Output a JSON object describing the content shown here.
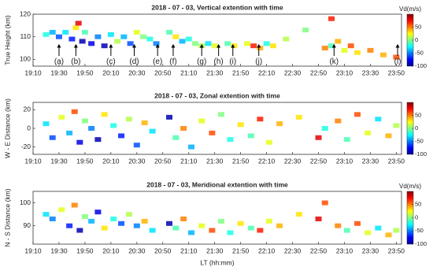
{
  "chart_data": [
    {
      "type": "scatter",
      "title": "2018 - 07 - 03,  Vertical extention with time",
      "ylabel": "True Height (km)",
      "colormap": "jet",
      "clim": [
        -100,
        100
      ],
      "cticks": [
        -100,
        -50,
        0,
        50
      ],
      "colorbar_label": "Vd(m/s)",
      "xlim": [
        "19:10",
        "23:54"
      ],
      "xticks": [
        "19:10",
        "19:30",
        "19:50",
        "20:10",
        "20:30",
        "20:50",
        "21:10",
        "21:30",
        "21:50",
        "22:10",
        "22:30",
        "22:50",
        "23:10",
        "23:30",
        "23:50"
      ],
      "ylim": [
        97,
        120
      ],
      "yticks": [
        100,
        110,
        120
      ],
      "x": [
        "19:20",
        "19:25",
        "19:30",
        "19:35",
        "19:40",
        "19:43",
        "19:45",
        "19:48",
        "19:50",
        "19:55",
        "20:00",
        "20:05",
        "20:10",
        "20:15",
        "20:20",
        "20:25",
        "20:30",
        "20:35",
        "20:40",
        "20:45",
        "20:55",
        "21:00",
        "21:05",
        "21:10",
        "21:15",
        "21:20",
        "21:25",
        "21:30",
        "21:40",
        "21:45",
        "21:55",
        "22:00",
        "22:05",
        "22:10",
        "22:15",
        "22:25",
        "22:40",
        "22:55",
        "23:00",
        "23:05",
        "23:10",
        "23:15",
        "23:20",
        "23:30",
        "23:40",
        "23:50",
        "23:00"
      ],
      "y": [
        111,
        112,
        110,
        112,
        109,
        114,
        116,
        108,
        112,
        107,
        110,
        106,
        111,
        108,
        110,
        107,
        112,
        110,
        109,
        107,
        112,
        110,
        108,
        109,
        107,
        106,
        107,
        106,
        107,
        106,
        107,
        106,
        105,
        107,
        106,
        109,
        113,
        105,
        106,
        108,
        104,
        106,
        103,
        104,
        102,
        101,
        118
      ],
      "c": [
        -20,
        -40,
        -60,
        -30,
        -70,
        30,
        80,
        -90,
        -10,
        -80,
        -50,
        -90,
        -30,
        10,
        -40,
        -60,
        20,
        0,
        -20,
        -50,
        -10,
        30,
        -40,
        -20,
        0,
        10,
        -30,
        20,
        -10,
        30,
        20,
        70,
        40,
        -20,
        30,
        10,
        0,
        50,
        -10,
        40,
        20,
        60,
        30,
        50,
        40,
        60,
        70
      ],
      "annotations": [
        {
          "text": "(a)",
          "x": "19:30"
        },
        {
          "text": "(b)",
          "x": "19:43"
        },
        {
          "text": "(c)",
          "x": "20:10"
        },
        {
          "text": "(d)",
          "x": "20:28"
        },
        {
          "text": "(e)",
          "x": "20:46"
        },
        {
          "text": "(f)",
          "x": "20:58"
        },
        {
          "text": "(g)",
          "x": "21:20"
        },
        {
          "text": "(h)",
          "x": "21:33"
        },
        {
          "text": "(i)",
          "x": "21:44"
        },
        {
          "text": "(j)",
          "x": "22:04"
        },
        {
          "text": "(k)",
          "x": "23:02"
        },
        {
          "text": "(l)",
          "x": "23:51"
        }
      ]
    },
    {
      "type": "scatter",
      "title": "2018 - 07 - 03,  Zonal extention with time",
      "ylabel": "W - E  Distance (km)",
      "colormap": "jet",
      "clim": [
        -100,
        100
      ],
      "cticks": [
        -100,
        -50,
        0,
        50
      ],
      "xlim": [
        "19:10",
        "23:54"
      ],
      "xticks": [
        "19:10",
        "19:30",
        "19:50",
        "20:10",
        "20:30",
        "20:50",
        "21:10",
        "21:30",
        "21:50",
        "22:10",
        "22:30",
        "22:50",
        "23:10",
        "23:30",
        "23:50"
      ],
      "ylim": [
        -28,
        28
      ],
      "yticks": [
        -20,
        0,
        20
      ],
      "x": [
        "19:20",
        "19:25",
        "19:32",
        "19:38",
        "19:42",
        "19:46",
        "19:50",
        "19:55",
        "20:00",
        "20:05",
        "20:12",
        "20:18",
        "20:24",
        "20:30",
        "20:36",
        "20:42",
        "20:55",
        "21:00",
        "21:06",
        "21:12",
        "21:20",
        "21:28",
        "21:35",
        "21:42",
        "21:50",
        "21:58",
        "22:05",
        "22:12",
        "22:20",
        "22:35",
        "22:50",
        "22:55",
        "23:05",
        "23:12",
        "23:20",
        "23:28",
        "23:36",
        "23:44",
        "23:50"
      ],
      "y": [
        5,
        -10,
        12,
        -5,
        18,
        -15,
        8,
        0,
        -12,
        15,
        3,
        -8,
        10,
        -18,
        6,
        -3,
        12,
        -10,
        0,
        -20,
        8,
        -5,
        15,
        -12,
        4,
        -8,
        10,
        -15,
        5,
        12,
        -10,
        0,
        8,
        -12,
        15,
        -5,
        10,
        -8,
        3
      ],
      "c": [
        -30,
        -60,
        20,
        -40,
        60,
        -80,
        0,
        -50,
        -90,
        30,
        -20,
        -70,
        10,
        -60,
        40,
        -30,
        -90,
        -10,
        50,
        -40,
        20,
        60,
        0,
        -20,
        30,
        -10,
        70,
        20,
        40,
        30,
        80,
        -20,
        50,
        -10,
        60,
        20,
        -30,
        40,
        10
      ]
    },
    {
      "type": "scatter",
      "title": "2018 - 07 - 03,  Meridional extention with time",
      "ylabel": "N - S  Distance (km)",
      "colormap": "jet",
      "clim": [
        -100,
        100
      ],
      "cticks": [
        -100,
        -50,
        0,
        50
      ],
      "colorbar_label": "Vd(m/s)",
      "xlabel": "LT (hh:mm)",
      "xlim": [
        "19:10",
        "23:54"
      ],
      "xticks": [
        "19:10",
        "19:30",
        "19:50",
        "20:10",
        "20:30",
        "20:50",
        "21:10",
        "21:30",
        "21:50",
        "22:10",
        "22:30",
        "22:50",
        "23:10",
        "23:30",
        "23:50"
      ],
      "ylim": [
        82,
        105
      ],
      "yticks": [
        90,
        100
      ],
      "x": [
        "19:20",
        "19:25",
        "19:32",
        "19:38",
        "19:42",
        "19:46",
        "19:50",
        "19:55",
        "20:00",
        "20:05",
        "20:12",
        "20:18",
        "20:24",
        "20:30",
        "20:36",
        "20:42",
        "20:55",
        "21:00",
        "21:06",
        "21:12",
        "21:20",
        "21:28",
        "21:35",
        "21:42",
        "21:50",
        "21:58",
        "22:05",
        "22:12",
        "22:20",
        "22:35",
        "22:50",
        "22:55",
        "23:05",
        "23:12",
        "23:20",
        "23:28",
        "23:36",
        "23:44",
        "23:50"
      ],
      "y": [
        95,
        93,
        97,
        90,
        99,
        88,
        94,
        92,
        96,
        89,
        93,
        91,
        95,
        90,
        92,
        88,
        91,
        89,
        93,
        87,
        90,
        88,
        92,
        87,
        91,
        89,
        88,
        92,
        90,
        95,
        93,
        100,
        90,
        88,
        91,
        87,
        89,
        86,
        88
      ],
      "c": [
        -30,
        -50,
        20,
        -70,
        50,
        -90,
        0,
        -40,
        -80,
        30,
        -20,
        -60,
        10,
        -50,
        40,
        -30,
        -90,
        -10,
        50,
        -40,
        20,
        60,
        0,
        -20,
        30,
        -10,
        70,
        20,
        40,
        30,
        80,
        60,
        50,
        -10,
        60,
        20,
        -30,
        40,
        10
      ]
    }
  ]
}
